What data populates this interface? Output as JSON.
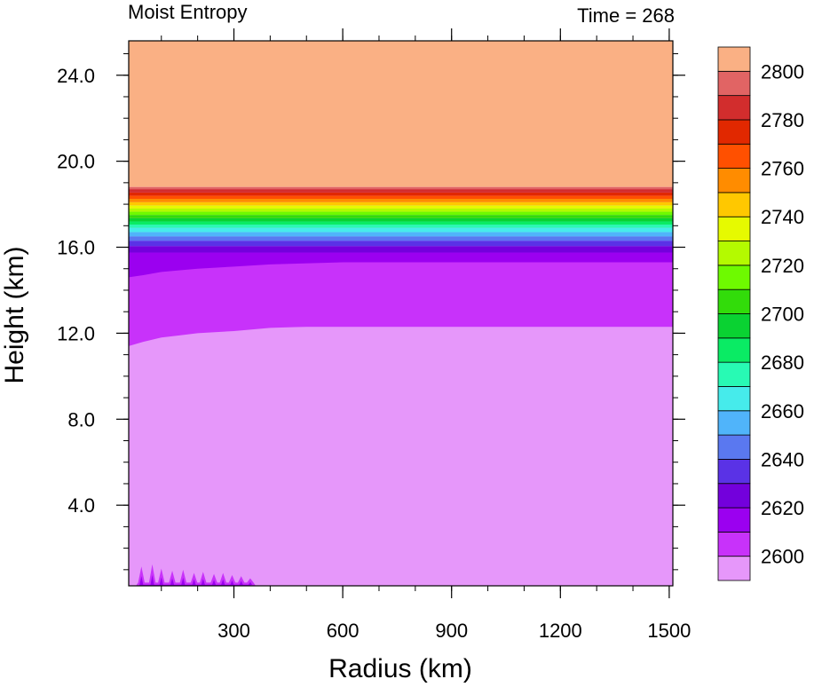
{
  "chart_data": {
    "type": "heatmap",
    "title_left": "Moist Entropy",
    "title_right": "Time = 268",
    "xlabel": "Radius (km)",
    "ylabel": "Height (km)",
    "xlim": [
      10,
      1510
    ],
    "ylim": [
      0.25,
      25.6
    ],
    "x_ticks": [
      300,
      600,
      900,
      1200,
      1500
    ],
    "x_tick_labels": [
      "300",
      "600",
      "900",
      "1200",
      "1500"
    ],
    "x_minor_step": 100,
    "y_ticks": [
      4,
      8,
      12,
      16,
      20,
      24
    ],
    "y_tick_labels": [
      "4.0",
      "8.0",
      "12.0",
      "16.0",
      "20.0",
      "24.0"
    ],
    "y_minor_step": 1,
    "colorbar": {
      "levels": [
        2600,
        2610,
        2620,
        2630,
        2640,
        2650,
        2660,
        2670,
        2680,
        2690,
        2700,
        2710,
        2720,
        2730,
        2740,
        2750,
        2760,
        2770,
        2780,
        2790,
        2800
      ],
      "labels": [
        "2600",
        "2620",
        "2640",
        "2660",
        "2680",
        "2700",
        "2720",
        "2740",
        "2760",
        "2780",
        "2800"
      ],
      "colors": [
        "#e697fa",
        "#c832fa",
        "#9b00f0",
        "#7300dc",
        "#5a32e6",
        "#5a78f0",
        "#50b4fa",
        "#46ebeb",
        "#28fab4",
        "#0aeb64",
        "#0ad232",
        "#32dc0a",
        "#6efa00",
        "#b4fa00",
        "#e6fa00",
        "#ffc800",
        "#ff8c00",
        "#ff5000",
        "#e12800",
        "#d22d2d",
        "#e16464",
        "#fab084"
      ]
    },
    "bands": [
      {
        "from": 12.3,
        "to": 15.3,
        "color_index": 1
      },
      {
        "from": 15.3,
        "to": 15.75,
        "color_index": 2
      },
      {
        "from": 15.75,
        "to": 16.05,
        "color_index": 3
      },
      {
        "from": 16.05,
        "to": 16.3,
        "color_index": 4
      },
      {
        "from": 16.3,
        "to": 16.5,
        "color_index": 5
      },
      {
        "from": 16.5,
        "to": 16.7,
        "color_index": 6
      },
      {
        "from": 16.7,
        "to": 16.9,
        "color_index": 7
      },
      {
        "from": 16.9,
        "to": 17.05,
        "color_index": 8
      },
      {
        "from": 17.05,
        "to": 17.2,
        "color_index": 9
      },
      {
        "from": 17.2,
        "to": 17.35,
        "color_index": 10
      },
      {
        "from": 17.35,
        "to": 17.5,
        "color_index": 11
      },
      {
        "from": 17.5,
        "to": 17.65,
        "color_index": 12
      },
      {
        "from": 17.65,
        "to": 17.8,
        "color_index": 13
      },
      {
        "from": 17.8,
        "to": 17.95,
        "color_index": 14
      },
      {
        "from": 17.95,
        "to": 18.1,
        "color_index": 15
      },
      {
        "from": 18.1,
        "to": 18.25,
        "color_index": 16
      },
      {
        "from": 18.25,
        "to": 18.4,
        "color_index": 17
      },
      {
        "from": 18.4,
        "to": 18.55,
        "color_index": 18
      },
      {
        "from": 18.55,
        "to": 18.7,
        "color_index": 19
      },
      {
        "from": 18.7,
        "to": 18.8,
        "color_index": 20
      },
      {
        "from": 18.8,
        "to": 25.6,
        "color_index": 21
      }
    ],
    "mid_level_boundary": [
      [
        10,
        11.4
      ],
      [
        50,
        11.6
      ],
      [
        100,
        11.8
      ],
      [
        150,
        11.9
      ],
      [
        200,
        12.0
      ],
      [
        300,
        12.1
      ],
      [
        400,
        12.25
      ],
      [
        500,
        12.3
      ],
      [
        1510,
        12.3
      ]
    ],
    "upper_boundary": [
      [
        10,
        14.6
      ],
      [
        50,
        14.7
      ],
      [
        100,
        14.85
      ],
      [
        200,
        15.0
      ],
      [
        300,
        15.1
      ],
      [
        400,
        15.2
      ],
      [
        600,
        15.3
      ],
      [
        1510,
        15.3
      ]
    ],
    "surface_spikes": [
      {
        "x": 45,
        "h": 0.9
      },
      {
        "x": 75,
        "h": 1.0
      },
      {
        "x": 100,
        "h": 0.8
      },
      {
        "x": 130,
        "h": 0.7
      },
      {
        "x": 160,
        "h": 0.75
      },
      {
        "x": 190,
        "h": 0.6
      },
      {
        "x": 215,
        "h": 0.65
      },
      {
        "x": 245,
        "h": 0.55
      },
      {
        "x": 270,
        "h": 0.6
      },
      {
        "x": 295,
        "h": 0.5
      },
      {
        "x": 320,
        "h": 0.45
      },
      {
        "x": 345,
        "h": 0.35
      }
    ]
  }
}
